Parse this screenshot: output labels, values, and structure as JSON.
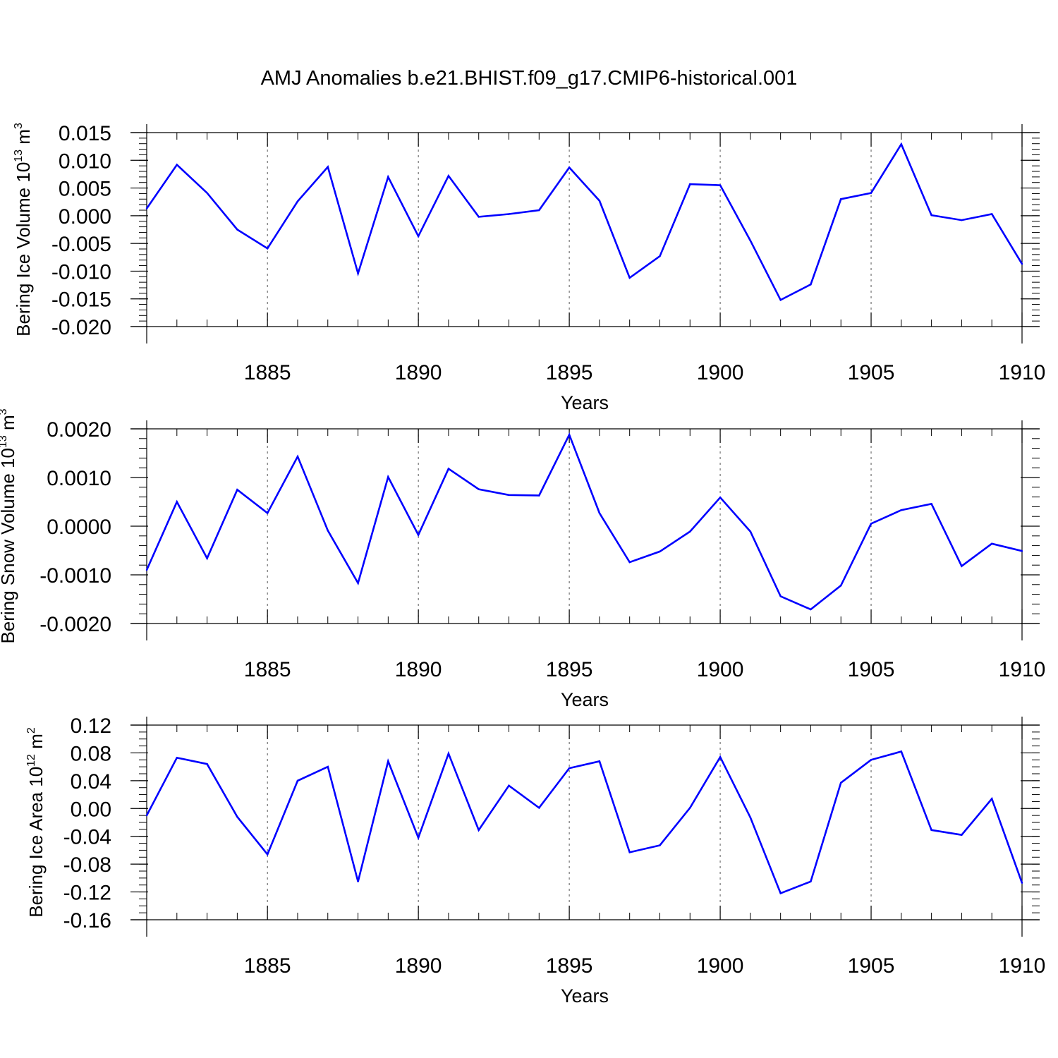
{
  "title": "AMJ Anomalies b.e21.BHIST.f09_g17.CMIP6-historical.001",
  "colors": {
    "line": "#0000ff",
    "axis": "#000000",
    "grid": "#555555"
  },
  "chart_data": [
    {
      "type": "line",
      "ylabel": "Bering Ice Volume 10",
      "ylabel_exp": "13",
      "ylabel_unit": " m",
      "ylabel_unit_exp": "3",
      "xlabel": "Years",
      "xlim": [
        1881,
        1910
      ],
      "ylim": [
        -0.02,
        0.015
      ],
      "yticks": [
        -0.02,
        -0.015,
        -0.01,
        -0.005,
        0.0,
        0.005,
        0.01,
        0.015
      ],
      "yticklabels": [
        "-0.020",
        "-0.015",
        "-0.010",
        "-0.005",
        "0.000",
        "0.005",
        "0.010",
        "0.015"
      ],
      "yminor": 0.001,
      "xticks": [
        1885,
        1890,
        1895,
        1900,
        1905,
        1910
      ],
      "xticklabels": [
        "1885",
        "1890",
        "1895",
        "1900",
        "1905",
        "1910"
      ],
      "grid": "vertical dashed at major x ticks",
      "x": [
        1881,
        1882,
        1883,
        1884,
        1885,
        1886,
        1887,
        1888,
        1889,
        1890,
        1891,
        1892,
        1893,
        1894,
        1895,
        1896,
        1897,
        1898,
        1899,
        1900,
        1901,
        1902,
        1903,
        1904,
        1905,
        1906,
        1907,
        1908,
        1909,
        1910
      ],
      "values": [
        0.0013,
        0.0092,
        0.0041,
        -0.0025,
        -0.0059,
        0.0026,
        0.0088,
        -0.0104,
        0.007,
        -0.0037,
        0.0072,
        -0.0002,
        0.0003,
        0.001,
        0.0087,
        0.0027,
        -0.0112,
        -0.0073,
        0.0057,
        0.0055,
        -0.0045,
        -0.0152,
        -0.0124,
        0.003,
        0.0041,
        0.0129,
        0.0001,
        -0.0008,
        0.0003,
        -0.0087
      ]
    },
    {
      "type": "line",
      "ylabel": "Bering Snow Volume 10",
      "ylabel_exp": "13",
      "ylabel_unit": " m",
      "ylabel_unit_exp": "3",
      "xlabel": "Years",
      "xlim": [
        1881,
        1910
      ],
      "ylim": [
        -0.002,
        0.002
      ],
      "yticks": [
        -0.002,
        -0.001,
        0.0,
        0.001,
        0.002
      ],
      "yticklabels": [
        "-0.0020",
        "-0.0010",
        "0.0000",
        "0.0010",
        "0.0020"
      ],
      "yminor": 0.0002,
      "xticks": [
        1885,
        1890,
        1895,
        1900,
        1905,
        1910
      ],
      "xticklabels": [
        "1885",
        "1890",
        "1895",
        "1900",
        "1905",
        "1910"
      ],
      "grid": "vertical dashed at major x ticks",
      "x": [
        1881,
        1882,
        1883,
        1884,
        1885,
        1886,
        1887,
        1888,
        1889,
        1890,
        1891,
        1892,
        1893,
        1894,
        1895,
        1896,
        1897,
        1898,
        1899,
        1900,
        1901,
        1902,
        1903,
        1904,
        1905,
        1906,
        1907,
        1908,
        1909,
        1910
      ],
      "values": [
        -0.0009,
        0.0005,
        -0.00066,
        0.00075,
        0.00027,
        0.00143,
        -9e-05,
        -0.00117,
        0.00101,
        -0.00018,
        0.00118,
        0.00076,
        0.00064,
        0.00063,
        0.00188,
        0.00027,
        -0.00074,
        -0.00052,
        -0.00011,
        0.00059,
        -0.00011,
        -0.00144,
        -0.00171,
        -0.00122,
        5e-05,
        0.00033,
        0.00046,
        -0.00082,
        -0.00036,
        -0.00051
      ]
    },
    {
      "type": "line",
      "ylabel": "Bering Ice Area 10",
      "ylabel_exp": "12",
      "ylabel_unit": " m",
      "ylabel_unit_exp": "2",
      "xlabel": "Years",
      "xlim": [
        1881,
        1910
      ],
      "ylim": [
        -0.16,
        0.12
      ],
      "yticks": [
        -0.16,
        -0.12,
        -0.08,
        -0.04,
        0.0,
        0.04,
        0.08,
        0.12
      ],
      "yticklabels": [
        "-0.16",
        "-0.12",
        "-0.08",
        "-0.04",
        "0.00",
        "0.04",
        "0.08",
        "0.12"
      ],
      "yminor": 0.01,
      "xticks": [
        1885,
        1890,
        1895,
        1900,
        1905,
        1910
      ],
      "xticklabels": [
        "1885",
        "1890",
        "1895",
        "1900",
        "1905",
        "1910"
      ],
      "grid": "vertical dashed at major x ticks",
      "x": [
        1881,
        1882,
        1883,
        1884,
        1885,
        1886,
        1887,
        1888,
        1889,
        1890,
        1891,
        1892,
        1893,
        1894,
        1895,
        1896,
        1897,
        1898,
        1899,
        1900,
        1901,
        1902,
        1903,
        1904,
        1905,
        1906,
        1907,
        1908,
        1909,
        1910
      ],
      "values": [
        -0.01,
        0.073,
        0.064,
        -0.012,
        -0.066,
        0.04,
        0.06,
        -0.105,
        0.068,
        -0.042,
        0.079,
        -0.031,
        0.033,
        0.001,
        0.058,
        0.068,
        -0.063,
        -0.053,
        0.001,
        0.074,
        -0.013,
        -0.122,
        -0.105,
        0.037,
        0.07,
        0.082,
        -0.031,
        -0.038,
        0.014,
        -0.107
      ]
    }
  ]
}
